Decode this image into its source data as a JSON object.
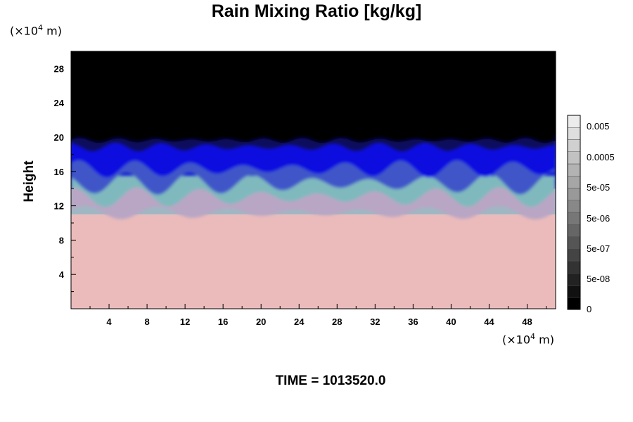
{
  "chart_data": {
    "type": "heatmap",
    "title": "Rain Mixing Ratio [kg/kg]",
    "ylabel": "Height",
    "xlabel": "",
    "x_unit": "×10",
    "y_unit": "×10",
    "unit_exponent": "4",
    "unit_suffix": "m",
    "x_ticks": [
      4,
      8,
      12,
      16,
      20,
      24,
      28,
      32,
      36,
      40,
      44,
      48
    ],
    "y_ticks": [
      4,
      8,
      12,
      16,
      20,
      24,
      28
    ],
    "xlim": [
      0,
      51
    ],
    "ylim": [
      0,
      30
    ],
    "layers": [
      {
        "name": "lower layer",
        "y_range": [
          0,
          11
        ],
        "color": "#ebbbbb"
      },
      {
        "name": "transition layer",
        "y_range": [
          11,
          14
        ],
        "color": "#9fb7c3"
      },
      {
        "name": "upper wavy layer",
        "y_range": [
          14,
          19.5
        ],
        "color": "#0e12d8"
      },
      {
        "name": "top",
        "y_range": [
          19.5,
          30
        ],
        "color": "#000000"
      }
    ],
    "colorbar": {
      "labels": [
        "0.005",
        "0.0005",
        "5e-05",
        "5e-06",
        "5e-07",
        "5e-08",
        "0"
      ],
      "levels": 16,
      "colors": [
        "#000000",
        "#111111",
        "#222222",
        "#333333",
        "#444444",
        "#555555",
        "#666666",
        "#777777",
        "#888888",
        "#999999",
        "#a6a6a6",
        "#b3b3b3",
        "#c2c2c2",
        "#d0d0d0",
        "#dedede",
        "#ececec"
      ]
    }
  },
  "time_label": "TIME = 1013520.0"
}
